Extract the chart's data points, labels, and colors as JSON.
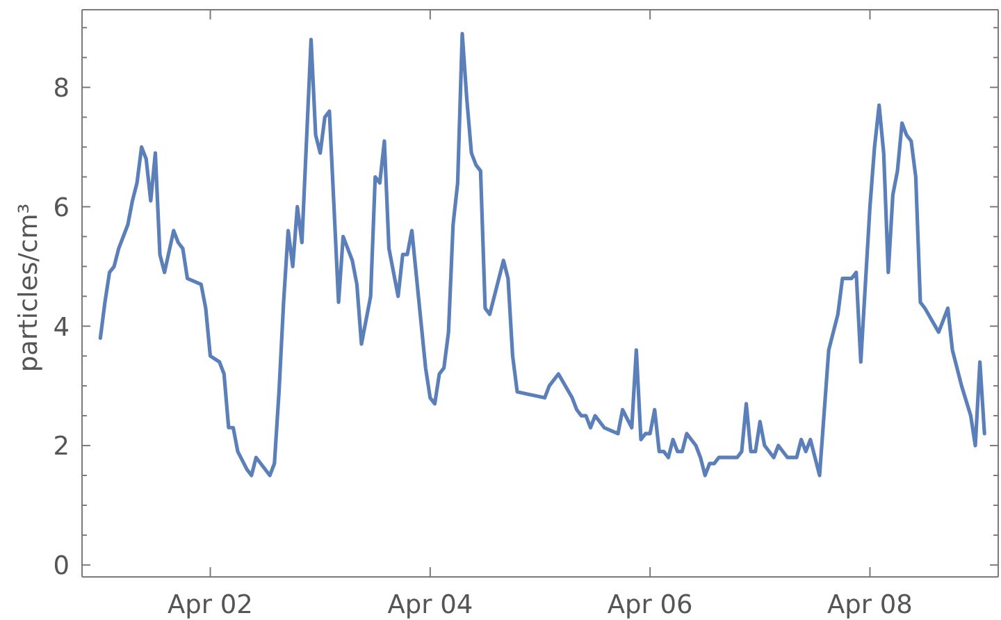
{
  "chart_data": {
    "type": "line",
    "ylabel": "particles/cm³",
    "x": [
      "--04-01T00:00",
      "--04-01T01:00",
      "--04-01T02:00",
      "--04-01T03:00",
      "--04-01T04:00",
      "--04-01T06:00",
      "--04-01T07:00",
      "--04-01T08:00",
      "--04-01T09:00",
      "--04-01T10:00",
      "--04-01T11:00",
      "--04-01T12:00",
      "--04-01T13:00",
      "--04-01T14:00",
      "--04-01T16:00",
      "--04-01T17:00",
      "--04-01T18:00",
      "--04-01T19:00",
      "--04-01T22:00",
      "--04-01T23:00",
      "--04-02T00:00",
      "--04-02T02:00",
      "--04-02T03:00",
      "--04-02T04:00",
      "--04-02T05:00",
      "--04-02T06:00",
      "--04-02T08:00",
      "--04-02T09:00",
      "--04-02T10:00",
      "--04-02T13:00",
      "--04-02T14:00",
      "--04-02T15:00",
      "--04-02T16:00",
      "--04-02T17:00",
      "--04-02T18:00",
      "--04-02T19:00",
      "--04-02T20:00",
      "--04-02T22:00",
      "--04-02T23:00",
      "--04-03T00:00",
      "--04-03T01:00",
      "--04-03T02:00",
      "--04-03T03:00",
      "--04-03T04:00",
      "--04-03T05:00",
      "--04-03T07:00",
      "--04-03T08:00",
      "--04-03T09:00",
      "--04-03T11:00",
      "--04-03T12:00",
      "--04-03T13:00",
      "--04-03T14:00",
      "--04-03T15:00",
      "--04-03T17:00",
      "--04-03T18:00",
      "--04-03T19:00",
      "--04-03T20:00",
      "--04-03T23:00",
      "--04-04T00:00",
      "--04-04T01:00",
      "--04-04T02:00",
      "--04-04T03:00",
      "--04-04T04:00",
      "--04-04T05:00",
      "--04-04T06:00",
      "--04-04T07:00",
      "--04-04T08:00",
      "--04-04T09:00",
      "--04-04T10:00",
      "--04-04T11:00",
      "--04-04T12:00",
      "--04-04T13:00",
      "--04-04T16:00",
      "--04-04T17:00",
      "--04-04T18:00",
      "--04-04T19:00",
      "--04-05T01:00",
      "--04-05T02:00",
      "--04-05T04:00",
      "--04-05T07:00",
      "--04-05T08:00",
      "--04-05T09:00",
      "--04-05T10:00",
      "--04-05T11:00",
      "--04-05T12:00",
      "--04-05T14:00",
      "--04-05T17:00",
      "--04-05T18:00",
      "--04-05T20:00",
      "--04-05T21:00",
      "--04-05T22:00",
      "--04-05T23:00",
      "--04-06T00:00",
      "--04-06T01:00",
      "--04-06T02:00",
      "--04-06T03:00",
      "--04-06T04:00",
      "--04-06T05:00",
      "--04-06T06:00",
      "--04-06T07:00",
      "--04-06T08:00",
      "--04-06T10:00",
      "--04-06T11:00",
      "--04-06T12:00",
      "--04-06T13:00",
      "--04-06T14:00",
      "--04-06T15:00",
      "--04-06T19:00",
      "--04-06T20:00",
      "--04-06T21:00",
      "--04-06T22:00",
      "--04-06T23:00",
      "--04-07T00:00",
      "--04-07T01:00",
      "--04-07T03:00",
      "--04-07T04:00",
      "--04-07T06:00",
      "--04-07T08:00",
      "--04-07T09:00",
      "--04-07T10:00",
      "--04-07T11:00",
      "--04-07T12:00",
      "--04-07T13:00",
      "--04-07T15:00",
      "--04-07T17:00",
      "--04-07T18:00",
      "--04-07T20:00",
      "--04-07T21:00",
      "--04-07T22:00",
      "--04-08T00:00",
      "--04-08T01:00",
      "--04-08T02:00",
      "--04-08T03:00",
      "--04-08T04:00",
      "--04-08T05:00",
      "--04-08T06:00",
      "--04-08T07:00",
      "--04-08T08:00",
      "--04-08T09:00",
      "--04-08T10:00",
      "--04-08T11:00",
      "--04-08T12:00",
      "--04-08T15:00",
      "--04-08T17:00",
      "--04-08T18:00",
      "--04-08T20:00",
      "--04-08T22:00",
      "--04-08T23:00",
      "--04-09T00:00",
      "--04-09T01:00"
    ],
    "series": [
      {
        "color": "#5b7fb8",
        "values": [
          3.8,
          4.4,
          4.9,
          5.0,
          5.3,
          5.7,
          6.1,
          6.4,
          7.0,
          6.8,
          6.1,
          6.9,
          5.2,
          4.9,
          5.6,
          5.4,
          5.3,
          4.8,
          4.7,
          4.3,
          3.5,
          3.4,
          3.2,
          2.3,
          2.3,
          1.9,
          1.6,
          1.5,
          1.8,
          1.5,
          1.7,
          2.9,
          4.4,
          5.6,
          5.0,
          6.0,
          5.4,
          8.8,
          7.2,
          6.9,
          7.5,
          7.6,
          6.0,
          4.4,
          5.5,
          5.1,
          4.7,
          3.7,
          4.5,
          6.5,
          6.4,
          7.1,
          5.3,
          4.5,
          5.2,
          5.2,
          5.6,
          3.3,
          2.8,
          2.7,
          3.2,
          3.3,
          3.9,
          5.7,
          6.4,
          8.9,
          7.8,
          6.9,
          6.7,
          6.6,
          4.3,
          4.2,
          5.1,
          4.8,
          3.5,
          2.9,
          2.8,
          3.0,
          3.2,
          2.8,
          2.6,
          2.5,
          2.5,
          2.3,
          2.5,
          2.3,
          2.2,
          2.6,
          2.3,
          3.6,
          2.1,
          2.2,
          2.2,
          2.6,
          1.9,
          1.9,
          1.8,
          2.1,
          1.9,
          1.9,
          2.2,
          2.0,
          1.8,
          1.5,
          1.7,
          1.7,
          1.8,
          1.8,
          1.9,
          2.7,
          1.9,
          1.9,
          2.4,
          2.0,
          1.8,
          2.0,
          1.8,
          1.8,
          2.1,
          1.9,
          2.1,
          1.8,
          1.5,
          3.6,
          4.2,
          4.8,
          4.8,
          4.9,
          3.4,
          6.0,
          7.0,
          7.7,
          6.9,
          4.9,
          6.2,
          6.6,
          7.4,
          7.2,
          7.1,
          6.5,
          4.4,
          4.3,
          3.9,
          4.3,
          3.6,
          3.0,
          2.5,
          2.0,
          3.4,
          2.2
        ]
      }
    ],
    "xlim": [
      "--03-31T20:00",
      "--04-09T04:00"
    ],
    "xticks": [
      {
        "value": "--04-02",
        "label": "Apr 02"
      },
      {
        "value": "--04-04",
        "label": "Apr 04"
      },
      {
        "value": "--04-06",
        "label": "Apr 06"
      },
      {
        "value": "--04-08",
        "label": "Apr 08"
      }
    ],
    "ylim": [
      -0.2,
      9.3
    ],
    "yticks": [
      0,
      {
        "value": 0.5,
        "label": null
      },
      {
        "value": 1,
        "label": null
      },
      {
        "value": 1.5,
        "label": null
      },
      2,
      {
        "value": 2.5,
        "label": null
      },
      {
        "value": 3,
        "label": null
      },
      {
        "value": 3.5,
        "label": null
      },
      4,
      {
        "value": 4.5,
        "label": null
      },
      {
        "value": 5,
        "label": null
      },
      {
        "value": 5.5,
        "label": null
      },
      6,
      {
        "value": 6.5,
        "label": null
      },
      {
        "value": 7,
        "label": null
      },
      {
        "value": 7.5,
        "label": null
      },
      8,
      {
        "value": 8.5,
        "label": null
      },
      {
        "value": 9,
        "label": null
      }
    ],
    "line_style": "solid"
  }
}
